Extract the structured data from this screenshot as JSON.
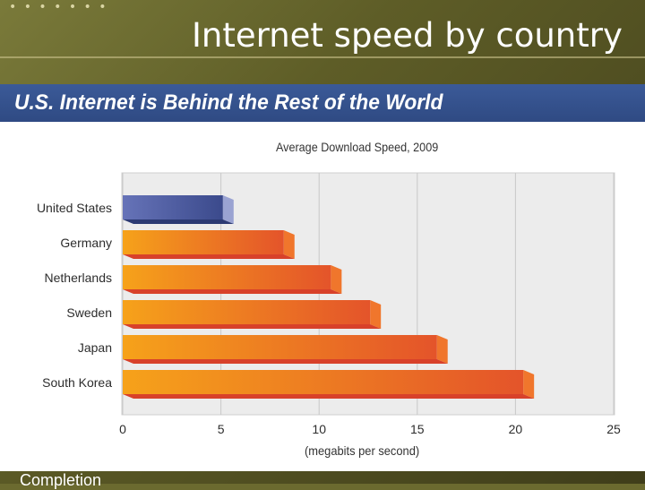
{
  "slide": {
    "title": "Internet speed by country",
    "footer_text": "Completion",
    "banner_title": "U.S. Internet is Behind the Rest of the World"
  },
  "colors": {
    "banner": "#3b5a98",
    "us_bar": "#3b4a8c",
    "other_bar_start": "#f6a21a",
    "other_bar_end": "#e4542a",
    "plot_bg": "#ececec"
  },
  "chart_data": {
    "type": "bar",
    "orientation": "horizontal",
    "title": "Average Download Speed, 2009",
    "xlabel": "(megabits per second)",
    "ylabel": "",
    "xlim": [
      0,
      25
    ],
    "xticks": [
      0,
      5,
      10,
      15,
      20,
      25
    ],
    "grid": true,
    "categories": [
      "United States",
      "Germany",
      "Netherlands",
      "Sweden",
      "Japan",
      "South Korea"
    ],
    "values": [
      5.1,
      8.2,
      10.6,
      12.6,
      16.0,
      20.4
    ]
  }
}
